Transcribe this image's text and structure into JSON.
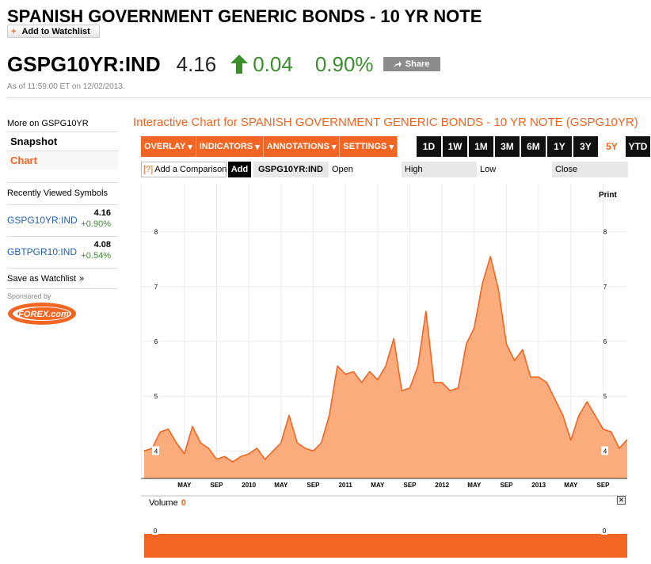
{
  "header": {
    "title": "SPANISH GOVERNMENT GENERIC BONDS - 10 YR NOTE",
    "watchlist_label": "Add to Watchlist"
  },
  "quote": {
    "ticker": "GSPG10YR:IND",
    "price": "4.16",
    "change": "0.04",
    "change_pct": "0.90%",
    "share_label": "Share",
    "as_of": "As of 11:59:00 ET on 12/02/2013."
  },
  "sidebar": {
    "more_on": "More on GSPG10YR",
    "items": [
      {
        "label": "Snapshot"
      },
      {
        "label": "Chart"
      }
    ],
    "recent_heading": "Recently Viewed Symbols",
    "recent": [
      {
        "symbol": "GSPG10YR:IND",
        "price": "4.16",
        "change": "+0.90%"
      },
      {
        "symbol": "GBTPGR10:IND",
        "price": "4.08",
        "change": "+0.54%"
      }
    ],
    "save_watchlist": "Save as Watchlist",
    "sponsored_by": "Sponsored by",
    "sponsor_logo_text": "FOREX.com"
  },
  "chart_panel": {
    "title": "Interactive Chart for SPANISH GOVERNMENT GENERIC BONDS - 10 YR NOTE (GSPG10YR)",
    "menus": [
      "OVERLAY",
      "INDICATORS",
      "ANNOTATIONS",
      "SETTINGS"
    ],
    "ranges": [
      "1D",
      "1W",
      "1M",
      "3M",
      "6M",
      "1Y",
      "3Y",
      "5Y",
      "YTD"
    ],
    "active_range": "5Y",
    "comparison_placeholder": "Add a Comparison",
    "add_label": "Add",
    "symbol": "GSPG10YR:IND",
    "columns": [
      "Open",
      "High",
      "Low",
      "Close"
    ],
    "print_label": "Print",
    "volume_label": "Volume",
    "volume_value": "0"
  },
  "colors": {
    "accent": "#f26522",
    "positive": "#3a8e2c",
    "area_fill": "#fbac7c"
  },
  "chart_data": {
    "type": "area",
    "y_ticks": [
      4,
      5,
      6,
      7,
      8
    ],
    "ylim": [
      3.5,
      8.5
    ],
    "x_tick_labels": [
      "MAY",
      "SEP",
      "2010",
      "MAY",
      "SEP",
      "2011",
      "MAY",
      "SEP",
      "2012",
      "MAY",
      "SEP",
      "2013",
      "MAY",
      "SEP"
    ],
    "x_tick_dates": [
      "2009-05",
      "2009-09",
      "2010-01",
      "2010-05",
      "2010-09",
      "2011-01",
      "2011-05",
      "2011-09",
      "2012-01",
      "2012-05",
      "2012-09",
      "2013-01",
      "2013-05",
      "2013-09"
    ],
    "xlim": [
      "2008-12",
      "2013-12"
    ],
    "series": [
      {
        "x": [
          "2008-12",
          "2009-01",
          "2009-02",
          "2009-03",
          "2009-04",
          "2009-05",
          "2009-06",
          "2009-07",
          "2009-08",
          "2009-09",
          "2009-10",
          "2009-11",
          "2009-12",
          "2010-01",
          "2010-02",
          "2010-03",
          "2010-04",
          "2010-05",
          "2010-06",
          "2010-07",
          "2010-08",
          "2010-09",
          "2010-10",
          "2010-11",
          "2010-12",
          "2011-01",
          "2011-02",
          "2011-03",
          "2011-04",
          "2011-05",
          "2011-06",
          "2011-07",
          "2011-08",
          "2011-09",
          "2011-10",
          "2011-11",
          "2011-12",
          "2012-01",
          "2012-02",
          "2012-03",
          "2012-04",
          "2012-05",
          "2012-06",
          "2012-07",
          "2012-08",
          "2012-09",
          "2012-10",
          "2012-11",
          "2012-12",
          "2013-01",
          "2013-02",
          "2013-03",
          "2013-04",
          "2013-05",
          "2013-06",
          "2013-07",
          "2013-08",
          "2013-09",
          "2013-10",
          "2013-11",
          "2013-12"
        ],
        "values": [
          3.95,
          4.1,
          4.3,
          4.45,
          4.1,
          4.0,
          4.4,
          4.2,
          4.0,
          3.9,
          3.85,
          3.85,
          3.85,
          4.0,
          4.0,
          3.9,
          3.95,
          4.2,
          4.6,
          4.2,
          4.0,
          4.05,
          4.1,
          4.7,
          5.5,
          5.45,
          5.4,
          5.3,
          5.4,
          5.35,
          5.5,
          6.1,
          5.05,
          5.2,
          5.5,
          6.6,
          5.2,
          5.3,
          5.05,
          5.2,
          5.9,
          6.3,
          7.0,
          7.6,
          6.9,
          6.0,
          5.6,
          5.9,
          5.3,
          5.4,
          5.2,
          5.0,
          4.6,
          4.25,
          4.6,
          4.95,
          4.6,
          4.45,
          4.3,
          4.1,
          4.16
        ]
      }
    ],
    "grid": true,
    "volume_values": [
      0
    ]
  }
}
